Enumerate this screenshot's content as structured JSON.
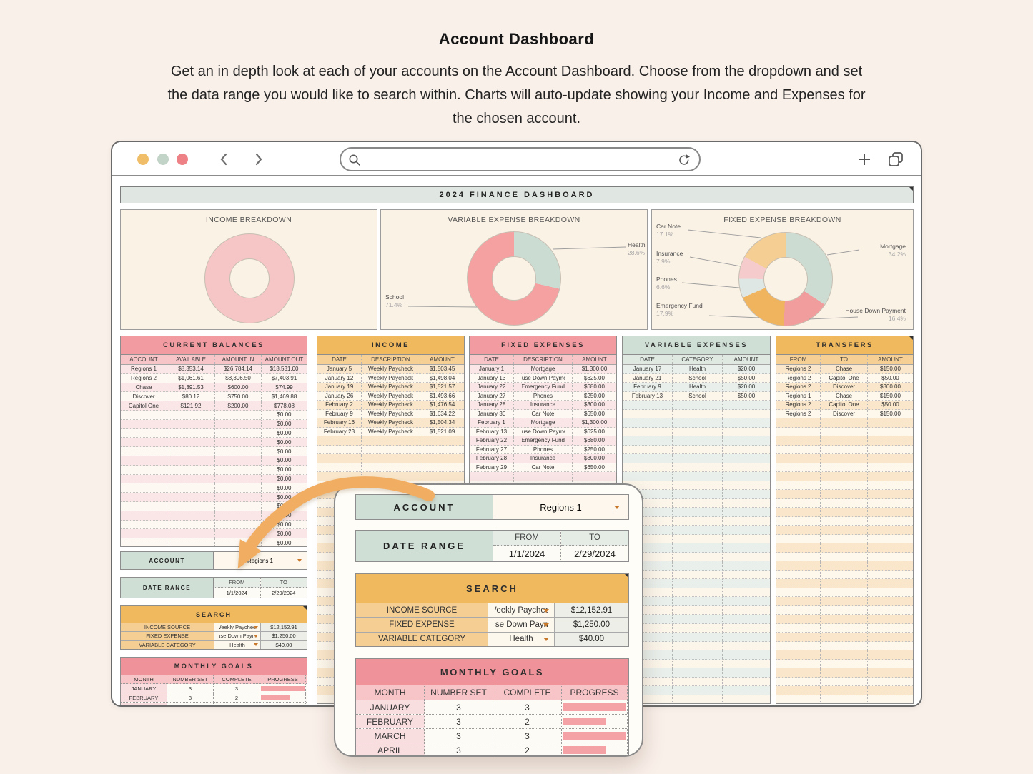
{
  "header": {
    "title": "Account Dashboard",
    "description_lines": [
      "Get an in depth look at each of your accounts on the Account Dashboard. Choose from the dropdown and set",
      "the data range you would like to search within. Charts will auto-update showing your Income and Expenses for",
      "the chosen account."
    ]
  },
  "colors": {
    "traffic_lights": [
      "#F0BE69",
      "#C2D3C7",
      "#ED8186"
    ],
    "arrow": "#F1AE63",
    "pink_header": "#F29CA2",
    "orange_header": "#F0B95D",
    "sage_header": "#CFDFD6"
  },
  "dashboard": {
    "title": "2024 FINANCE DASHBOARD"
  },
  "chart_data": [
    {
      "id": "income_breakdown",
      "type": "pie",
      "title": "INCOME BREAKDOWN",
      "legend_position": "none",
      "grid": false,
      "series": [
        {
          "name": "Income",
          "pct": 100,
          "color": "#F6C5C5"
        }
      ]
    },
    {
      "id": "variable_expense_breakdown",
      "type": "pie",
      "title": "VARIABLE EXPENSE BREAKDOWN",
      "legend_position": "callout-labels",
      "grid": false,
      "series": [
        {
          "name": "Health",
          "pct": 28.6,
          "color": "#CBDCD3"
        },
        {
          "name": "School",
          "pct": 71.4,
          "color": "#F5A1A1"
        }
      ]
    },
    {
      "id": "fixed_expense_breakdown",
      "type": "pie",
      "title": "FIXED EXPENSE BREAKDOWN",
      "legend_position": "callout-labels",
      "grid": false,
      "series": [
        {
          "name": "Mortgage",
          "pct": 34.2,
          "color": "#CDDCD3"
        },
        {
          "name": "House Down Payment",
          "pct": 16.4,
          "color": "#F29D9D"
        },
        {
          "name": "Emergency Fund",
          "pct": 17.9,
          "color": "#F0B45F"
        },
        {
          "name": "Phones",
          "pct": 6.6,
          "color": "#DEE7E3"
        },
        {
          "name": "Insurance",
          "pct": 7.9,
          "color": "#F6CBCB"
        },
        {
          "name": "Car Note",
          "pct": 17.1,
          "color": "#F5CE93"
        }
      ]
    }
  ],
  "tables": {
    "current_balances": {
      "title": "CURRENT BALANCES",
      "headers": [
        "ACCOUNT",
        "AVAILABLE",
        "AMOUNT IN",
        "AMOUNT OUT"
      ],
      "rows": [
        [
          "Regions 1",
          "$8,353.14",
          "$26,784.14",
          "$18,531.00"
        ],
        [
          "Regions 2",
          "$1,061.61",
          "$8,396.50",
          "$7,403.91"
        ],
        [
          "Chase",
          "$1,391.53",
          "$600.00",
          "$74.99"
        ],
        [
          "Discover",
          "$80.12",
          "$750.00",
          "$1,469.88"
        ],
        [
          "Capitol One",
          "$121.92",
          "$200.00",
          "$778.08"
        ]
      ],
      "empty_row_amount_out": "$0.00"
    },
    "income": {
      "title": "INCOME",
      "headers": [
        "DATE",
        "DESCRIPTION",
        "AMOUNT"
      ],
      "rows": [
        [
          "January 5",
          "Weekly Paycheck",
          "$1,503.45"
        ],
        [
          "January 12",
          "Weekly Paycheck",
          "$1,498.04"
        ],
        [
          "January 19",
          "Weekly Paycheck",
          "$1,521.57"
        ],
        [
          "January 26",
          "Weekly Paycheck",
          "$1,493.66"
        ],
        [
          "February 2",
          "Weekly Paycheck",
          "$1,476.54"
        ],
        [
          "February 9",
          "Weekly Paycheck",
          "$1,634.22"
        ],
        [
          "February 16",
          "Weekly Paycheck",
          "$1,504.34"
        ],
        [
          "February 23",
          "Weekly Paycheck",
          "$1,521.09"
        ]
      ]
    },
    "fixed_expenses": {
      "title": "FIXED EXPENSES",
      "headers": [
        "DATE",
        "DESCRIPTION",
        "AMOUNT"
      ],
      "rows": [
        [
          "January 1",
          "Mortgage",
          "$1,300.00"
        ],
        [
          "January 13",
          "House Down Payment",
          "$625.00"
        ],
        [
          "January 22",
          "Emergency Fund",
          "$680.00"
        ],
        [
          "January 27",
          "Phones",
          "$250.00"
        ],
        [
          "January 28",
          "Insurance",
          "$300.00"
        ],
        [
          "January 30",
          "Car Note",
          "$650.00"
        ],
        [
          "February 1",
          "Mortgage",
          "$1,300.00"
        ],
        [
          "February 13",
          "House Down Payment",
          "$625.00"
        ],
        [
          "February 22",
          "Emergency Fund",
          "$680.00"
        ],
        [
          "February 27",
          "Phones",
          "$250.00"
        ],
        [
          "February 28",
          "Insurance",
          "$300.00"
        ],
        [
          "February 29",
          "Car Note",
          "$650.00"
        ]
      ]
    },
    "variable_expenses": {
      "title": "VARIABLE EXPENSES",
      "headers": [
        "DATE",
        "CATEGORY",
        "AMOUNT"
      ],
      "rows": [
        [
          "January 17",
          "Health",
          "$20.00"
        ],
        [
          "January 21",
          "School",
          "$50.00"
        ],
        [
          "February 9",
          "Health",
          "$20.00"
        ],
        [
          "February 13",
          "School",
          "$50.00"
        ]
      ]
    },
    "transfers": {
      "title": "TRANSFERS",
      "headers": [
        "FROM",
        "TO",
        "AMOUNT"
      ],
      "rows": [
        [
          "Regions 2",
          "Chase",
          "$150.00"
        ],
        [
          "Regions 2",
          "Capitol One",
          "$50.00"
        ],
        [
          "Regions 2",
          "Discover",
          "$300.00"
        ],
        [
          "Regions 1",
          "Chase",
          "$150.00"
        ],
        [
          "Regions 2",
          "Capitol One",
          "$50.00"
        ],
        [
          "Regions 2",
          "Discover",
          "$150.00"
        ]
      ]
    }
  },
  "account_panel": {
    "label": "ACCOUNT",
    "value": "Regions 1"
  },
  "date_range_panel": {
    "label": "DATE RANGE",
    "from_label": "FROM",
    "to_label": "TO",
    "from_value": "1/1/2024",
    "to_value": "2/29/2024"
  },
  "search_panel": {
    "title": "SEARCH",
    "rows": [
      {
        "label": "INCOME SOURCE",
        "value": "Weekly Paycheck",
        "amount": "$12,152.91"
      },
      {
        "label": "FIXED EXPENSE",
        "value": "House Down Payment",
        "amount": "$1,250.00"
      },
      {
        "label": "VARIABLE CATEGORY",
        "value": "Health",
        "amount": "$40.00"
      }
    ]
  },
  "monthly_goals": {
    "title": "MONTHLY GOALS",
    "headers": [
      "MONTH",
      "NUMBER SET",
      "COMPLETE",
      "PROGRESS"
    ],
    "rows": [
      {
        "month": "JANUARY",
        "number_set": "3",
        "complete": "3"
      },
      {
        "month": "FEBRUARY",
        "number_set": "3",
        "complete": "2"
      },
      {
        "month": "MARCH",
        "number_set": "3",
        "complete": "3"
      },
      {
        "month": "APRIL",
        "number_set": "3",
        "complete": "2"
      }
    ]
  }
}
